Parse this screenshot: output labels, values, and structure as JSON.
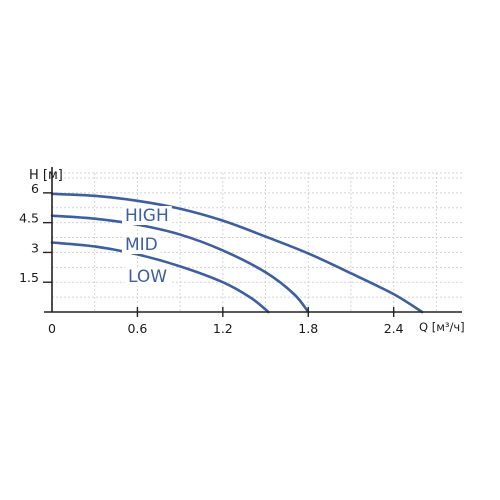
{
  "chart_data": {
    "type": "line",
    "title": "",
    "xlabel": "Q [м³/ч]",
    "ylabel": "H [м]",
    "xlim": [
      0,
      2.88
    ],
    "ylim": [
      0,
      7
    ],
    "x_ticks": [
      "0",
      "0.6",
      "1.2",
      "1.8",
      "2.4"
    ],
    "y_ticks": [
      "1.5",
      "3",
      "4.5",
      "6"
    ],
    "grid": true,
    "series": [
      {
        "name": "HIGH",
        "color": "#3d5fa1",
        "points": [
          [
            0,
            5.95
          ],
          [
            0.3,
            5.85
          ],
          [
            0.6,
            5.6
          ],
          [
            0.9,
            5.2
          ],
          [
            1.2,
            4.6
          ],
          [
            1.5,
            3.8
          ],
          [
            1.8,
            2.95
          ],
          [
            2.1,
            1.95
          ],
          [
            2.4,
            0.9
          ],
          [
            2.6,
            0
          ]
        ]
      },
      {
        "name": "MID",
        "color": "#3d5fa1",
        "points": [
          [
            0,
            4.85
          ],
          [
            0.3,
            4.7
          ],
          [
            0.6,
            4.4
          ],
          [
            0.9,
            3.9
          ],
          [
            1.2,
            3.1
          ],
          [
            1.5,
            2.0
          ],
          [
            1.7,
            0.9
          ],
          [
            1.8,
            0
          ]
        ]
      },
      {
        "name": "LOW",
        "color": "#3d5fa1",
        "points": [
          [
            0,
            3.5
          ],
          [
            0.3,
            3.3
          ],
          [
            0.6,
            2.9
          ],
          [
            0.9,
            2.3
          ],
          [
            1.2,
            1.5
          ],
          [
            1.4,
            0.7
          ],
          [
            1.52,
            0
          ]
        ]
      }
    ]
  }
}
